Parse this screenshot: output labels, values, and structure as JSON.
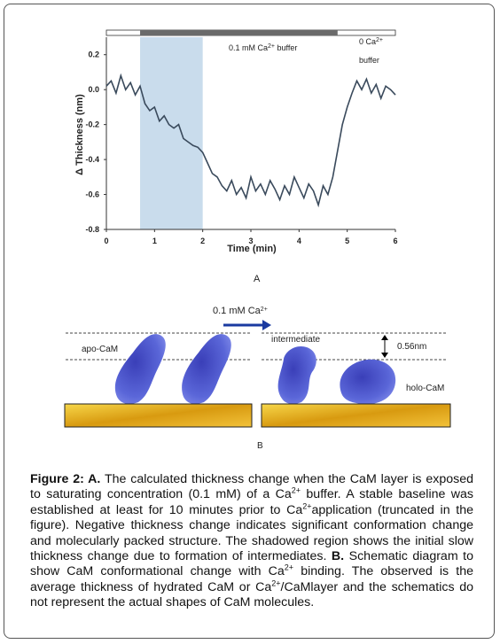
{
  "chart_data": {
    "type": "line",
    "y_label": "Δ Thickness (nm)",
    "x_label": "Time (min)",
    "panel_label": "A",
    "buffer_labels": [
      [
        {
          "text": "0.1 mM  Ca"
        },
        {
          "text": "2+",
          "style": "sup"
        },
        {
          "text": " buffer"
        }
      ],
      [
        {
          "text": "0 Ca"
        },
        {
          "text": "2+",
          "style": "sup"
        }
      ],
      [
        {
          "text": "buffer"
        }
      ]
    ],
    "buffer_bar": [
      0.7,
      4.8
    ],
    "shaded_region": [
      0.7,
      2.0
    ],
    "xlim": [
      0,
      6
    ],
    "xticks": [
      0,
      1,
      2,
      3,
      4,
      5,
      6
    ],
    "ylim": [
      -0.8,
      0.3
    ],
    "yticks": [
      0.2,
      {
        "value": 0,
        "label": "0.0"
      },
      -0.2,
      -0.4,
      -0.6,
      -0.8
    ],
    "series": [
      {
        "color": "#3a4a5c",
        "x": [
          0,
          0.1,
          0.2,
          0.3,
          0.4,
          0.5,
          0.6,
          0.7,
          0.8,
          0.9,
          1,
          1.1,
          1.2,
          1.3,
          1.4,
          1.5,
          1.6,
          1.7,
          1.8,
          1.9,
          2,
          2.1,
          2.2,
          2.3,
          2.4,
          2.5,
          2.6,
          2.7,
          2.8,
          2.9,
          3,
          3.1,
          3.2,
          3.3,
          3.4,
          3.5,
          3.6,
          3.7,
          3.8,
          3.9,
          4,
          4.1,
          4.2,
          4.3,
          4.4,
          4.5,
          4.6,
          4.7,
          4.8,
          4.9,
          5,
          5.1,
          5.2,
          5.3,
          5.4,
          5.5,
          5.6,
          5.7,
          5.8,
          5.9,
          6
        ],
        "values": [
          0.02,
          0.05,
          -0.02,
          0.08,
          0,
          0.04,
          -0.03,
          0.02,
          -0.08,
          -0.12,
          -0.1,
          -0.18,
          -0.15,
          -0.2,
          -0.22,
          -0.2,
          -0.28,
          -0.3,
          -0.32,
          -0.33,
          -0.36,
          -0.42,
          -0.48,
          -0.5,
          -0.55,
          -0.58,
          -0.52,
          -0.6,
          -0.56,
          -0.62,
          -0.5,
          -0.58,
          -0.54,
          -0.6,
          -0.52,
          -0.57,
          -0.63,
          -0.55,
          -0.6,
          -0.5,
          -0.56,
          -0.62,
          -0.54,
          -0.58,
          -0.66,
          -0.55,
          -0.6,
          -0.5,
          -0.35,
          -0.2,
          -0.1,
          -0.02,
          0.05,
          0,
          0.06,
          -0.02,
          0.03,
          -0.05,
          0.02,
          0,
          -0.03
        ]
      }
    ]
  },
  "diagram": {
    "arrow_label": [
      {
        "text": "0.1 mM Ca"
      },
      {
        "text": "2+",
        "style": "sup"
      }
    ],
    "apo": "apo-CaM",
    "intermediate": "intermediate",
    "gap": "0.56nm",
    "holo": "holo-CaM",
    "panel_label": "B"
  },
  "caption": [
    {
      "text": "Figure 2: A.",
      "style": "b"
    },
    {
      "text": " The calculated thickness change when the CaM layer is exposed to saturating concentration (0.1 mM) of a Ca"
    },
    {
      "text": "2+",
      "style": "sup"
    },
    {
      "text": " buffer.  A stable baseline was established at least for 10 minutes prior to Ca"
    },
    {
      "text": "2+",
      "style": "sup"
    },
    {
      "text": "application (truncated in the figure). Negative thickness change indicates significant conformation change and molecularly packed structure.  The shadowed region shows the initial slow thickness change due to formation of intermediates. "
    },
    {
      "text": "B.",
      "style": "b"
    },
    {
      "text": " Schematic diagram to show CaM conformational change with Ca"
    },
    {
      "text": "2+",
      "style": "sup"
    },
    {
      "text": " binding.  The observed is the average thickness of hydrated CaM or Ca"
    },
    {
      "text": "2+",
      "style": "sup"
    },
    {
      "text": "/CaMlayer and the schematics do not represent the actual shapes of CaM molecules."
    }
  ]
}
